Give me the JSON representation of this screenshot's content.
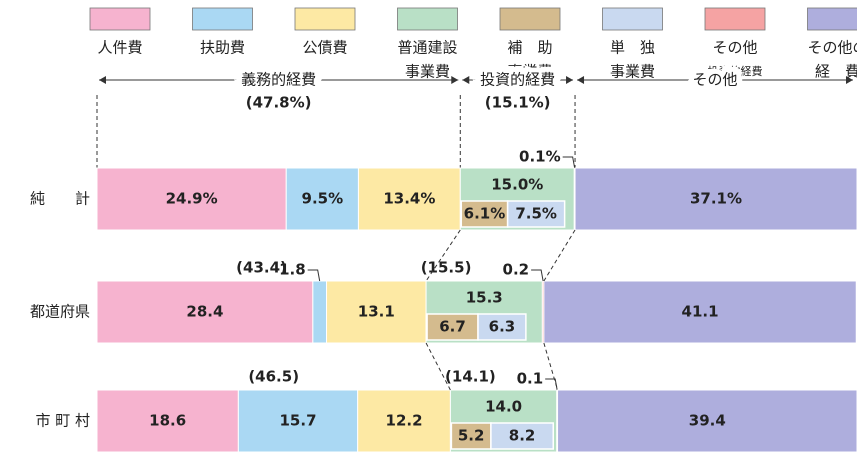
{
  "chart_data": {
    "type": "stacked-bar",
    "categories": [
      "純　　計",
      "都道府県",
      "市 町 村"
    ],
    "xlim": [
      0,
      100
    ],
    "series": [
      {
        "name": [
          "人件費"
        ],
        "color": "#f6b3cf",
        "values": [
          24.9,
          28.4,
          18.6
        ],
        "value_labels": [
          "24.9%",
          "28.4",
          "18.6"
        ]
      },
      {
        "name": [
          "扶助費"
        ],
        "color": "#aad8f3",
        "values": [
          9.5,
          1.8,
          15.7
        ],
        "value_labels": [
          "9.5%",
          "1.8",
          "15.7"
        ]
      },
      {
        "name": [
          "公債費"
        ],
        "color": "#fde9a4",
        "values": [
          13.4,
          13.1,
          12.2
        ],
        "value_labels": [
          "13.4%",
          "13.1",
          "12.2"
        ]
      },
      {
        "name": [
          "普通建設",
          "事業費"
        ],
        "color": "#b9e0c6",
        "values": [
          15.0,
          15.3,
          14.0
        ],
        "value_labels": [
          "15.0%",
          "15.3",
          "14.0"
        ],
        "parts": [
          {
            "name": [
              "補　助",
              "事業費"
            ],
            "color": "#d4bb8e",
            "values": [
              6.1,
              6.7,
              5.2
            ],
            "value_labels": [
              "6.1%",
              "6.7",
              "5.2"
            ]
          },
          {
            "name": [
              "単　独",
              "事業費"
            ],
            "color": "#c9d9f0",
            "values": [
              7.5,
              6.3,
              8.2
            ],
            "value_labels": [
              "7.5%",
              "6.3",
              "8.2"
            ]
          }
        ]
      },
      {
        "name": [
          "その他",
          "投資的経費"
        ],
        "color": "#f5a3a3",
        "values": [
          0.1,
          0.2,
          0.1
        ],
        "value_labels": [
          "0.1%",
          "0.2",
          "0.1"
        ]
      },
      {
        "name": [
          "その他の",
          "経　費"
        ],
        "color": "#aeaedd",
        "values": [
          37.1,
          41.1,
          39.4
        ],
        "value_labels": [
          "37.1%",
          "41.1",
          "39.4"
        ]
      }
    ],
    "groups": [
      {
        "name": "義務的経費",
        "values": [
          47.8,
          43.4,
          46.5
        ],
        "value_labels": [
          "(47.8%)",
          "(43.4)",
          "(46.5)"
        ]
      },
      {
        "name": "投資的経費",
        "values": [
          15.1,
          15.5,
          14.1
        ],
        "value_labels": [
          "(15.1%)",
          "(15.5)",
          "(14.1)"
        ]
      },
      {
        "name": "その他"
      }
    ]
  }
}
